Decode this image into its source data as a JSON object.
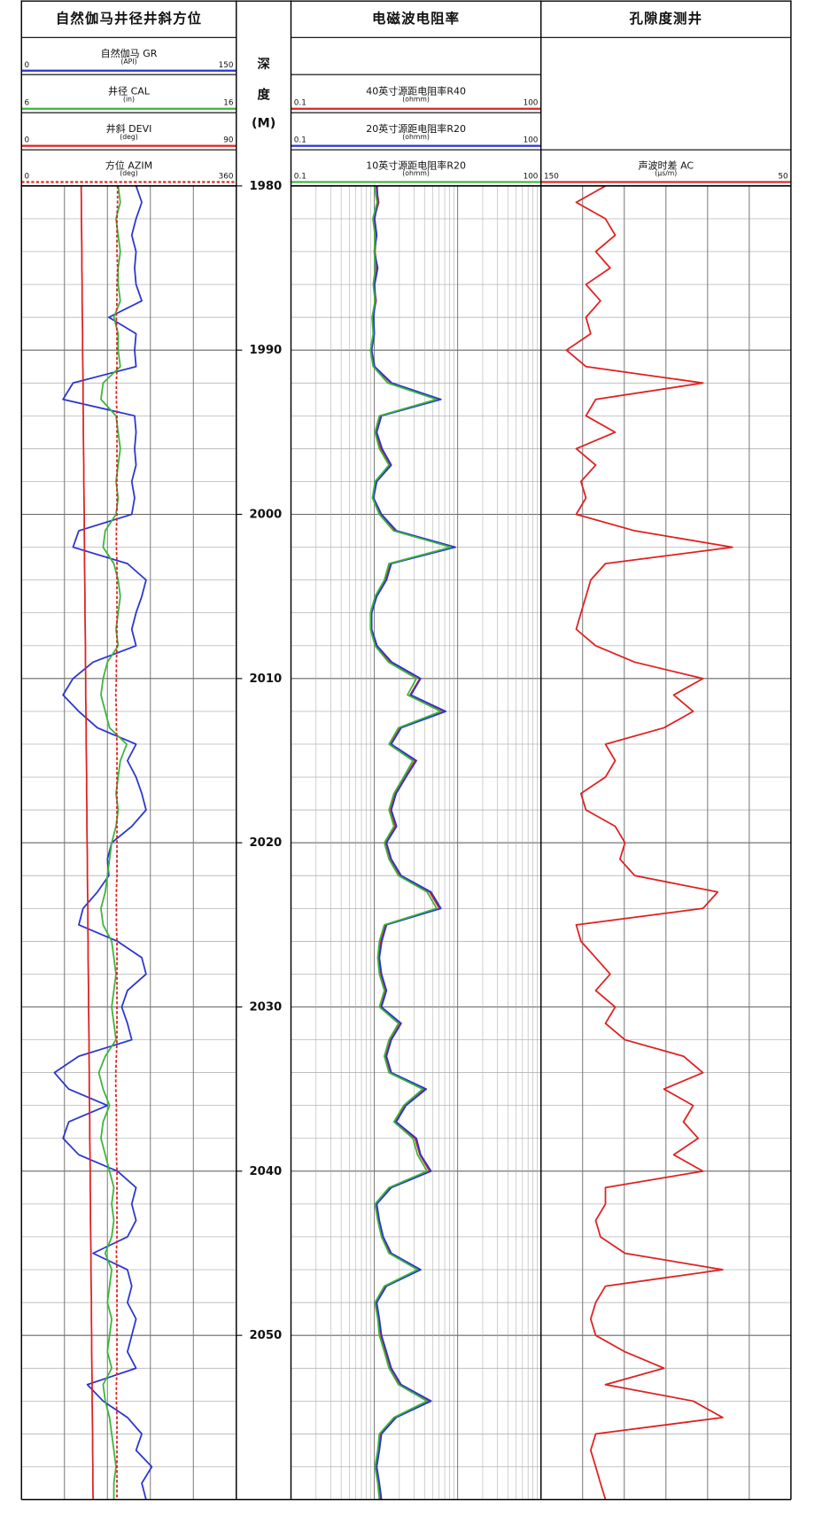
{
  "chart_data": {
    "type": "well_log",
    "depth_label": [
      "深",
      "度",
      "(M)"
    ],
    "ylim": [
      1980,
      2060
    ],
    "yticks": [
      1980,
      1990,
      2000,
      2010,
      2020,
      2030,
      2040,
      2050
    ],
    "minor_yticks": [
      1982,
      1984,
      1986,
      1988,
      1992,
      1994,
      1996,
      1998,
      2002,
      2004,
      2006,
      2008,
      2012,
      2014,
      2016,
      2018,
      2022,
      2024,
      2026,
      2028,
      2032,
      2034,
      2036,
      2038,
      2042,
      2044,
      2046,
      2048,
      2052,
      2054,
      2056,
      2058
    ],
    "depth": [
      1980,
      1981,
      1982,
      1983,
      1984,
      1985,
      1986,
      1987,
      1988,
      1989,
      1990,
      1991,
      1992,
      1993,
      1994,
      1995,
      1996,
      1997,
      1998,
      1999,
      2000,
      2001,
      2002,
      2003,
      2004,
      2005,
      2006,
      2007,
      2008,
      2009,
      2010,
      2011,
      2012,
      2013,
      2014,
      2015,
      2016,
      2017,
      2018,
      2019,
      2020,
      2021,
      2022,
      2023,
      2024,
      2025,
      2026,
      2027,
      2028,
      2029,
      2030,
      2031,
      2032,
      2033,
      2034,
      2035,
      2036,
      2037,
      2038,
      2039,
      2040,
      2041,
      2042,
      2043,
      2044,
      2045,
      2046,
      2047,
      2048,
      2049,
      2050,
      2051,
      2052,
      2053,
      2054,
      2055,
      2056,
      2057,
      2058,
      2059,
      2060
    ],
    "grid": true,
    "tracks": [
      {
        "title": "自然伽马井径井斜方位",
        "log_scale": false,
        "xticks": [
          0,
          30,
          60,
          90,
          120,
          150
        ],
        "curves": [
          {
            "name": "自然伽马 GR",
            "unit": "(API)",
            "xlim": [
              0,
              150
            ],
            "color": "#2a35d0",
            "dashed": false,
            "values": [
              80,
              84,
              80,
              77,
              80,
              79,
              80,
              84,
              61,
              80,
              79,
              80,
              36,
              29,
              79,
              80,
              79,
              80,
              77,
              79,
              77,
              40,
              36,
              74,
              87,
              84,
              80,
              77,
              80,
              50,
              36,
              29,
              40,
              53,
              80,
              74,
              80,
              84,
              87,
              77,
              63,
              60,
              61,
              53,
              43,
              40,
              67,
              84,
              87,
              74,
              70,
              74,
              77,
              40,
              23,
              33,
              60,
              33,
              29,
              40,
              67,
              80,
              77,
              80,
              74,
              50,
              74,
              77,
              74,
              80,
              77,
              74,
              80,
              46,
              57,
              74,
              84,
              80,
              91,
              84,
              87
            ]
          },
          {
            "name": "井径 CAL",
            "unit": "(in)",
            "xlim": [
              6,
              16
            ],
            "color": "#3ab53a",
            "dashed": false,
            "values": [
              10.5,
              10.6,
              10.4,
              10.5,
              10.6,
              10.5,
              10.5,
              10.6,
              10.3,
              10.5,
              10.5,
              10.6,
              9.8,
              9.7,
              10.4,
              10.5,
              10.6,
              10.5,
              10.4,
              10.5,
              10.4,
              9.9,
              9.8,
              10.3,
              10.5,
              10.6,
              10.5,
              10.4,
              10.5,
              10.0,
              9.8,
              9.7,
              9.9,
              10.1,
              10.9,
              10.6,
              10.5,
              10.4,
              10.5,
              10.4,
              10.2,
              10.1,
              10.0,
              9.9,
              9.7,
              9.8,
              10.2,
              10.3,
              10.4,
              10.3,
              10.2,
              10.3,
              10.4,
              9.9,
              9.6,
              9.8,
              10.1,
              9.8,
              9.7,
              9.9,
              10.1,
              10.3,
              10.2,
              10.3,
              10.2,
              9.9,
              10.2,
              10.1,
              10.0,
              10.2,
              10.1,
              10.0,
              10.2,
              9.8,
              9.9,
              10.1,
              10.2,
              10.3,
              10.4,
              10.3,
              10.3
            ]
          },
          {
            "name": "井斜 DEVI",
            "unit": "(deg)",
            "xlim": [
              0,
              90
            ],
            "color": "#e02020",
            "dashed": false,
            "values": [
              25.0,
              25.1,
              25.1,
              25.2,
              25.3,
              25.3,
              25.4,
              25.4,
              25.5,
              25.6,
              25.6,
              25.7,
              25.8,
              25.8,
              25.9,
              25.9,
              26.0,
              26.1,
              26.1,
              26.2,
              26.3,
              26.3,
              26.4,
              26.4,
              26.5,
              26.6,
              26.6,
              26.7,
              26.8,
              26.8,
              26.9,
              26.9,
              27.0,
              27.1,
              27.1,
              27.2,
              27.3,
              27.3,
              27.4,
              27.4,
              27.5,
              27.6,
              27.6,
              27.7,
              27.8,
              27.8,
              27.9,
              27.9,
              28.0,
              28.1,
              28.1,
              28.2,
              28.3,
              28.3,
              28.4,
              28.4,
              28.5,
              28.6,
              28.6,
              28.7,
              28.8,
              28.8,
              28.9,
              28.9,
              29.0,
              29.1,
              29.1,
              29.2,
              29.3,
              29.3,
              29.4,
              29.4,
              29.5,
              29.6,
              29.6,
              29.7,
              29.8,
              29.8,
              29.9,
              29.9,
              30.0
            ]
          },
          {
            "name": "方位 AZIM",
            "unit": "(deg)",
            "xlim": [
              0,
              360
            ],
            "color": "#e02020",
            "dashed": true,
            "values": [
              161,
              161,
              160,
              160,
              160,
              161,
              160,
              160,
              159,
              160,
              160,
              160,
              159,
              159,
              160,
              160,
              160,
              160,
              160,
              160,
              160,
              159,
              159,
              160,
              160,
              160,
              160,
              160,
              160,
              159,
              159,
              158,
              159,
              159,
              160,
              160,
              160,
              160,
              160,
              160,
              160,
              160,
              160,
              159,
              159,
              159,
              160,
              160,
              160,
              160,
              160,
              160,
              160,
              159,
              158,
              158,
              159,
              159,
              159,
              159,
              160,
              160,
              160,
              160,
              160,
              159,
              160,
              160,
              160,
              160,
              160,
              160,
              160,
              159,
              159,
              160,
              160,
              160,
              160,
              160,
              160
            ]
          }
        ]
      },
      {
        "title": "电磁波电阻率",
        "log_scale": true,
        "xticks": [
          0.1,
          0.2,
          0.3,
          0.4,
          0.5,
          0.6,
          0.7,
          0.8,
          0.9,
          1,
          2,
          3,
          4,
          5,
          6,
          7,
          8,
          9,
          10,
          20,
          30,
          40,
          50,
          60,
          70,
          80,
          90,
          100
        ],
        "curves": [
          {
            "name": "40英寸源距电阻率R40",
            "unit": "(ohmm)",
            "xlim": [
              0.1,
              100
            ],
            "color": "#e02020",
            "dashed": false,
            "values": [
              1.05,
              1.13,
              0.99,
              1.05,
              1.02,
              1.07,
              0.99,
              1.05,
              0.96,
              0.99,
              0.91,
              0.99,
              1.57,
              6.04,
              1.2,
              1.05,
              1.2,
              1.57,
              1.05,
              0.96,
              1.2,
              1.79,
              9.06,
              1.57,
              1.37,
              1.05,
              0.91,
              0.91,
              1.05,
              1.57,
              3.52,
              2.69,
              6.92,
              2.05,
              1.57,
              3.08,
              2.35,
              1.79,
              1.57,
              1.79,
              1.37,
              1.57,
              2.05,
              4.61,
              6.04,
              1.37,
              1.2,
              1.13,
              1.2,
              1.37,
              1.2,
              2.05,
              1.57,
              1.37,
              1.57,
              4.03,
              2.35,
              1.79,
              3.08,
              3.52,
              4.61,
              1.57,
              1.05,
              1.13,
              1.26,
              1.57,
              3.52,
              1.37,
              1.05,
              1.13,
              1.2,
              1.37,
              1.57,
              2.05,
              4.61,
              1.79,
              1.2,
              1.13,
              1.05,
              1.13,
              1.2
            ]
          },
          {
            "name": "20英寸源距电阻率R20",
            "unit": "(ohmm)",
            "xlim": [
              0.1,
              100
            ],
            "color": "#2a35d0",
            "dashed": false,
            "values": [
              1.08,
              1.1,
              1.01,
              1.07,
              1.0,
              1.1,
              1.01,
              1.03,
              0.98,
              1.0,
              0.93,
              1.01,
              1.62,
              6.3,
              1.22,
              1.07,
              1.24,
              1.6,
              1.07,
              0.98,
              1.22,
              1.85,
              9.4,
              1.6,
              1.4,
              1.07,
              0.93,
              0.93,
              1.08,
              1.62,
              3.6,
              2.75,
              7.2,
              2.1,
              1.6,
              3.2,
              2.4,
              1.83,
              1.6,
              1.85,
              1.4,
              1.6,
              2.1,
              4.8,
              6.3,
              1.4,
              1.23,
              1.15,
              1.22,
              1.4,
              1.22,
              2.1,
              1.6,
              1.4,
              1.6,
              4.2,
              2.4,
              1.83,
              3.2,
              3.6,
              4.8,
              1.6,
              1.07,
              1.15,
              1.28,
              1.6,
              3.6,
              1.4,
              1.07,
              1.15,
              1.22,
              1.4,
              1.6,
              2.1,
              4.8,
              1.83,
              1.22,
              1.15,
              1.07,
              1.15,
              1.22
            ]
          },
          {
            "name": "10英寸源距电阻率R20",
            "unit": "(ohmm)",
            "xlim": [
              0.1,
              100
            ],
            "color": "#3ab53a",
            "dashed": false,
            "values": [
              1.0,
              1.08,
              0.96,
              1.02,
              1.0,
              1.03,
              0.97,
              1.02,
              0.94,
              0.97,
              0.9,
              0.97,
              1.45,
              5.6,
              1.15,
              1.02,
              1.15,
              1.5,
              1.02,
              0.95,
              1.15,
              1.7,
              8.3,
              1.5,
              1.32,
              1.02,
              0.9,
              0.9,
              1.02,
              1.48,
              3.2,
              2.5,
              6.3,
              1.95,
              1.5,
              2.9,
              2.25,
              1.72,
              1.5,
              1.72,
              1.32,
              1.5,
              1.95,
              4.3,
              5.6,
              1.32,
              1.15,
              1.1,
              1.15,
              1.32,
              1.15,
              1.95,
              1.5,
              1.32,
              1.5,
              3.8,
              2.25,
              1.72,
              2.9,
              3.3,
              4.3,
              1.5,
              1.02,
              1.1,
              1.22,
              1.5,
              3.3,
              1.32,
              1.02,
              1.1,
              1.15,
              1.32,
              1.5,
              1.95,
              4.3,
              1.72,
              1.15,
              1.1,
              1.02,
              1.1,
              1.15
            ]
          }
        ]
      },
      {
        "title": "孔隙度测井",
        "log_scale": false,
        "xticks": [
          150,
          133.33,
          116.67,
          100,
          83.33,
          66.67,
          50
        ],
        "curves": [
          {
            "name": "声波时差 AC",
            "unit": "(μs/m)",
            "xlim": [
              150,
              50
            ],
            "color": "#e02020",
            "dashed": false,
            "values": [
              124.2,
              135.9,
              124.2,
              120.3,
              128.1,
              122.3,
              132.0,
              126.2,
              132.0,
              130.1,
              139.8,
              132.0,
              85.2,
              128.1,
              132.0,
              120.3,
              135.9,
              128.1,
              134.0,
              132.0,
              135.9,
              112.5,
              73.4,
              124.2,
              130.1,
              132.0,
              134.0,
              135.9,
              128.1,
              112.5,
              85.2,
              96.9,
              89.1,
              100.8,
              124.2,
              120.3,
              124.2,
              134.0,
              132.0,
              120.3,
              116.4,
              118.4,
              112.5,
              79.3,
              85.2,
              135.9,
              134.0,
              128.1,
              122.3,
              128.1,
              120.3,
              124.2,
              116.4,
              93.0,
              85.2,
              100.8,
              89.1,
              93.0,
              87.1,
              96.9,
              85.2,
              124.2,
              124.2,
              128.1,
              126.2,
              116.4,
              77.3,
              124.2,
              128.1,
              130.1,
              128.1,
              116.4,
              100.8,
              124.2,
              89.1,
              77.3,
              128.1,
              130.1,
              128.1,
              126.2,
              124.2
            ]
          }
        ]
      }
    ]
  }
}
